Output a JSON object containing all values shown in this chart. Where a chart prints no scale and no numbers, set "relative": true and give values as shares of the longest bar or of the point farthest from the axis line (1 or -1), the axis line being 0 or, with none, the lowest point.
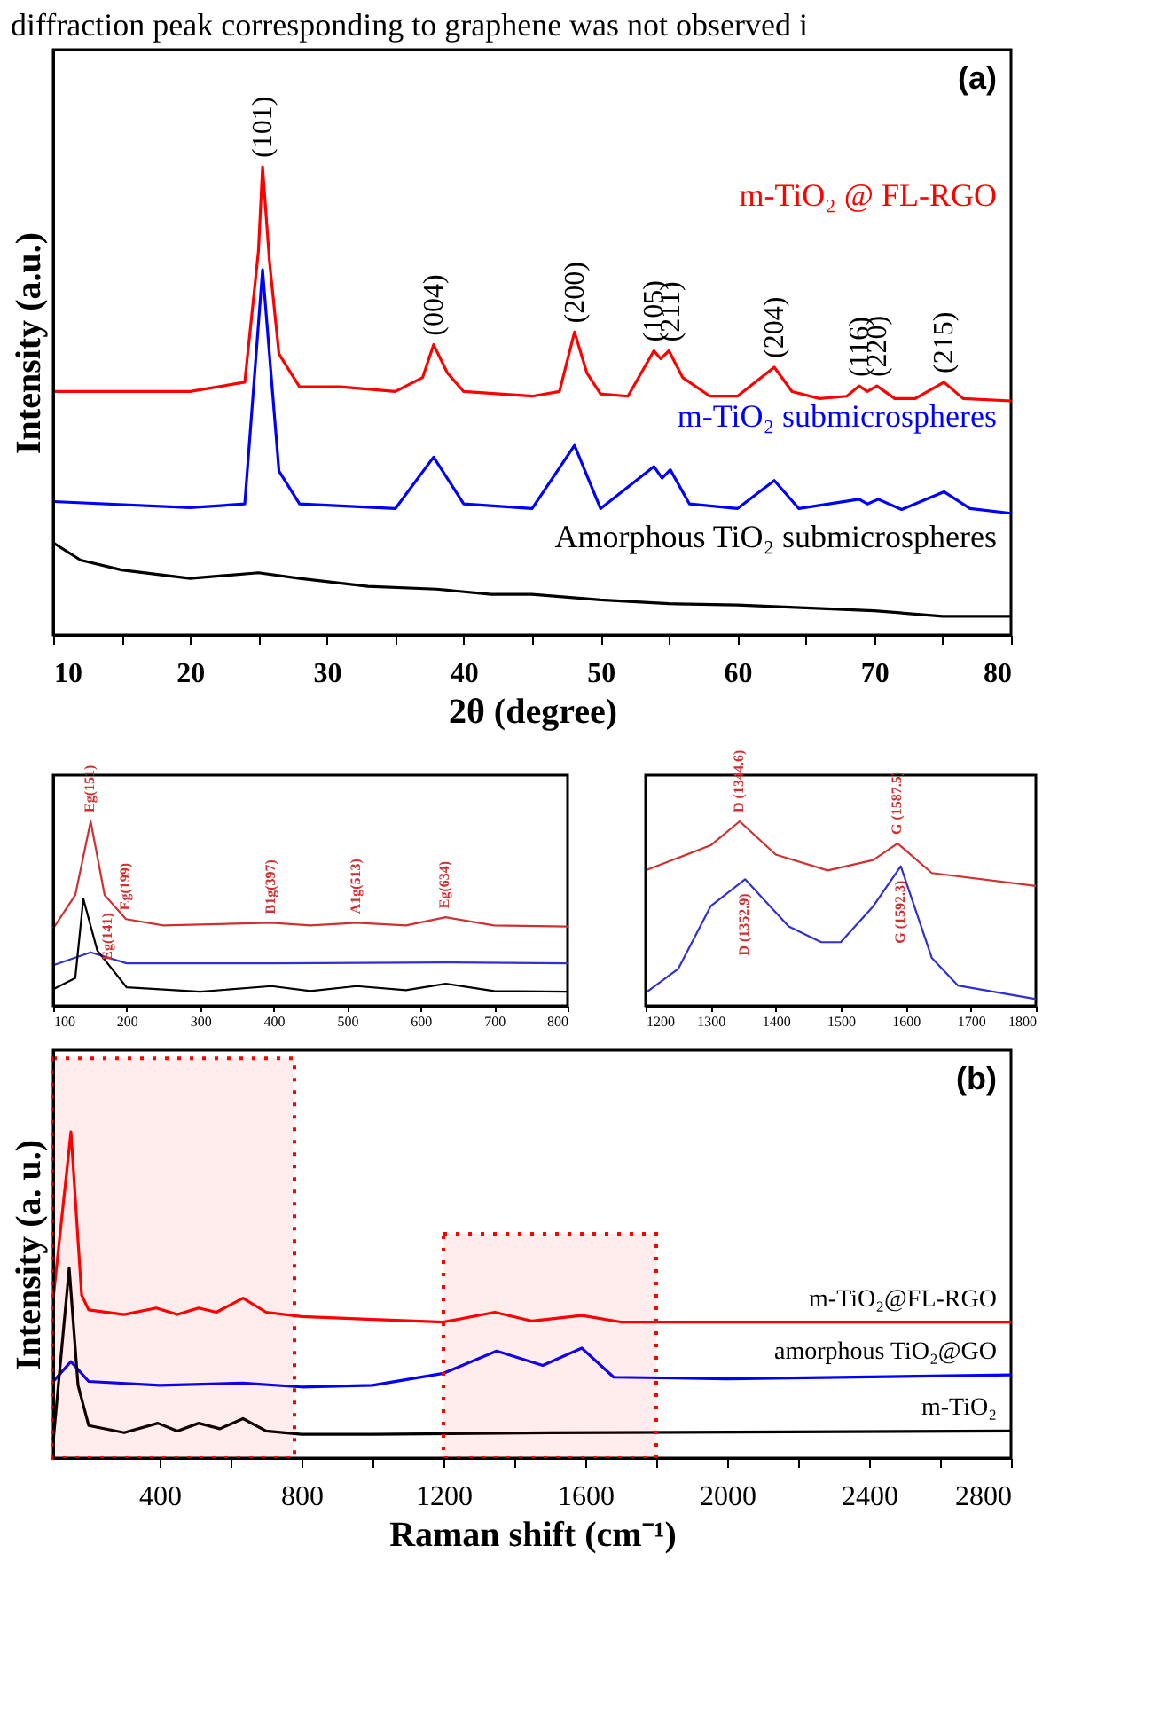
{
  "chart_data": [
    {
      "type": "line",
      "relative": true,
      "title": "diffraction peak corresponding to graphene was not observed i",
      "xlabel": "2θ (degree)",
      "ylabel": "Intensity (a.u.)",
      "xlim": [
        10,
        80
      ],
      "xticks": [
        10,
        {
          "value": 15,
          "label": null
        },
        20,
        {
          "value": 25,
          "label": null
        },
        30,
        {
          "value": 35,
          "label": null
        },
        40,
        {
          "value": 45,
          "label": null
        },
        50,
        {
          "value": 55,
          "label": null
        },
        60,
        {
          "value": 65,
          "label": null
        },
        70,
        {
          "value": 75,
          "label": null
        },
        80
      ],
      "annotations": [
        "(a)",
        {
          "text": "(101)",
          "x": 25.3,
          "y": 1.0
        },
        {
          "text": "(004)",
          "x": 37.8,
          "y": 0.62
        },
        {
          "text": "(200)",
          "x": 48.1,
          "y": 0.647
        },
        {
          "text": "(105)",
          "x": 53.9,
          "y": 0.607
        },
        {
          "text": "(211)",
          "x": 55.1,
          "y": 0.607
        },
        {
          "text": "(204)",
          "x": 62.7,
          "y": 0.572
        },
        {
          "text": "(116)",
          "x": 68.9,
          "y": 0.532
        },
        {
          "text": "(220)",
          "x": 70.2,
          "y": 0.532
        },
        {
          "text": "(215)",
          "x": 75.1,
          "y": 0.54
        }
      ],
      "series": [
        {
          "name": "m-TiO₂ @ FL-RGO",
          "color": "#ff0000",
          "x": [
            10,
            20,
            24,
            25,
            25.3,
            25.8,
            26.5,
            28,
            31,
            35,
            37,
            37.8,
            38.8,
            40,
            45,
            47,
            48.1,
            49,
            50,
            52,
            53.9,
            54.4,
            55,
            56,
            58,
            60,
            62.7,
            64,
            66,
            68,
            68.9,
            69.5,
            70.2,
            71.5,
            73,
            75.1,
            76.5,
            80
          ],
          "values": [
            0.52,
            0.52,
            0.54,
            0.82,
            1.0,
            0.8,
            0.6,
            0.53,
            0.53,
            0.52,
            0.55,
            0.62,
            0.56,
            0.52,
            0.51,
            0.52,
            0.647,
            0.56,
            0.515,
            0.51,
            0.607,
            0.59,
            0.607,
            0.55,
            0.51,
            0.51,
            0.572,
            0.52,
            0.505,
            0.51,
            0.532,
            0.52,
            0.532,
            0.505,
            0.505,
            0.54,
            0.505,
            0.5
          ]
        },
        {
          "name": "m-TiO₂ submicrospheres",
          "color": "#0000ff",
          "x": [
            10,
            20,
            24,
            25.3,
            26.5,
            28,
            35,
            37.8,
            40,
            45,
            48.1,
            50,
            53.9,
            54.5,
            55.1,
            56.5,
            60,
            62.7,
            64.5,
            68.9,
            69.5,
            70.3,
            72,
            75.1,
            77,
            80
          ],
          "values": [
            0.285,
            0.272,
            0.28,
            0.78,
            0.35,
            0.28,
            0.27,
            0.38,
            0.28,
            0.27,
            0.405,
            0.27,
            0.36,
            0.335,
            0.353,
            0.28,
            0.27,
            0.33,
            0.27,
            0.29,
            0.28,
            0.29,
            0.268,
            0.306,
            0.27,
            0.26
          ]
        },
        {
          "name": "Amorphous TiO₂ submicrospheres",
          "color": "#000000",
          "x": [
            10,
            12,
            15,
            20,
            25,
            28,
            33,
            38,
            42,
            45,
            50,
            55,
            60,
            65,
            70,
            75,
            80
          ],
          "values": [
            0.197,
            0.16,
            0.139,
            0.121,
            0.133,
            0.121,
            0.104,
            0.098,
            0.087,
            0.087,
            0.075,
            0.067,
            0.064,
            0.058,
            0.052,
            0.04,
            0.04
          ]
        }
      ]
    },
    {
      "type": "line",
      "relative": true,
      "xlim": [
        100,
        800
      ],
      "xticks": [
        100,
        200,
        300,
        400,
        500,
        600,
        700,
        800
      ],
      "annotations": [
        {
          "text": "Eg(151)",
          "x": 151,
          "y": 1.0
        },
        {
          "text": "Eg(141)",
          "x": 141,
          "y": 0.58
        },
        {
          "text": "Eg(199)",
          "x": 199,
          "y": 0.47
        },
        {
          "text": "B1g(397)",
          "x": 397,
          "y": 0.45
        },
        {
          "text": "A1g(513)",
          "x": 513,
          "y": 0.45
        },
        {
          "text": "Eg(634)",
          "x": 634,
          "y": 0.48
        }
      ],
      "series": [
        {
          "color": "#d03030",
          "x": [
            100,
            130,
            151,
            170,
            199,
            250,
            397,
            450,
            513,
            580,
            634,
            700,
            800
          ],
          "values": [
            0.42,
            0.6,
            1.0,
            0.6,
            0.47,
            0.436,
            0.45,
            0.436,
            0.45,
            0.436,
            0.48,
            0.436,
            0.43
          ]
        },
        {
          "color": "#3030d0",
          "x": [
            100,
            151,
            200,
            400,
            634,
            800
          ],
          "values": [
            0.22,
            0.29,
            0.23,
            0.23,
            0.235,
            0.23
          ]
        },
        {
          "color": "#000000",
          "x": [
            100,
            130,
            141,
            160,
            200,
            300,
            397,
            450,
            513,
            580,
            634,
            700,
            800
          ],
          "values": [
            0.09,
            0.15,
            0.58,
            0.3,
            0.1,
            0.076,
            0.107,
            0.08,
            0.107,
            0.085,
            0.12,
            0.08,
            0.076
          ]
        }
      ]
    },
    {
      "type": "line",
      "relative": true,
      "xlim": [
        1200,
        1800
      ],
      "xticks": [
        1200,
        1300,
        1400,
        1500,
        1600,
        1700,
        1800
      ],
      "annotations": [
        {
          "text": "D (1344.6)",
          "x": 1344.6,
          "y": 1.0
        },
        {
          "text": "G (1587.5)",
          "x": 1587.5,
          "y": 0.88
        },
        {
          "text": "D (1352.9)",
          "x": 1352.9,
          "y": 0.686
        },
        {
          "text": "G (1592.3)",
          "x": 1592.3,
          "y": 0.757
        }
      ],
      "series": [
        {
          "color": "#d03030",
          "x": [
            1200,
            1300,
            1344.6,
            1400,
            1480,
            1550,
            1587.5,
            1640,
            1800
          ],
          "values": [
            0.734,
            0.87,
            1.0,
            0.82,
            0.734,
            0.79,
            0.88,
            0.72,
            0.65
          ]
        },
        {
          "color": "#3030d0",
          "x": [
            1200,
            1250,
            1300,
            1352.9,
            1420,
            1470,
            1500,
            1550,
            1592.3,
            1640,
            1680,
            1800
          ],
          "values": [
            0.07,
            0.2,
            0.54,
            0.686,
            0.43,
            0.345,
            0.345,
            0.54,
            0.757,
            0.26,
            0.11,
            0.037
          ]
        }
      ]
    },
    {
      "type": "line",
      "relative": true,
      "xlabel": "Raman shift (cm⁻¹)",
      "ylabel": "Intensity (a. u.)",
      "xlim": [
        100,
        2800
      ],
      "xticks": [
        400,
        {
          "value": 600,
          "label": null
        },
        800,
        {
          "value": 1000,
          "label": null
        },
        1200,
        {
          "value": 1400,
          "label": null
        },
        1600,
        {
          "value": 1800,
          "label": null
        },
        2000,
        {
          "value": 2200,
          "label": null
        },
        2400,
        {
          "value": 2600,
          "label": null
        },
        2800
      ],
      "annotations": [
        "(b)"
      ],
      "bands": [
        {
          "axis": "x",
          "from": 100,
          "to": 780,
          "color": "#ff0000"
        },
        {
          "axis": "x",
          "from": 1200,
          "to": 1800,
          "color": "#ff0000"
        }
      ],
      "series": [
        {
          "name": "m-TiO₂@FL-RGO",
          "color": "#ff0000",
          "x": [
            100,
            150,
            180,
            200,
            300,
            390,
            450,
            510,
            560,
            635,
            700,
            800,
            1000,
            1200,
            1345,
            1450,
            1590,
            1700,
            2000,
            2400,
            2800
          ],
          "values": [
            0.49,
            1.0,
            0.5,
            0.454,
            0.44,
            0.46,
            0.44,
            0.46,
            0.447,
            0.49,
            0.447,
            0.434,
            0.425,
            0.417,
            0.447,
            0.42,
            0.437,
            0.417,
            0.417,
            0.417,
            0.417
          ]
        },
        {
          "name": "amorphous TiO₂@GO",
          "color": "#0000ff",
          "x": [
            100,
            150,
            200,
            400,
            635,
            800,
            1000,
            1200,
            1350,
            1480,
            1590,
            1680,
            2000,
            2800
          ],
          "values": [
            0.235,
            0.296,
            0.235,
            0.223,
            0.23,
            0.218,
            0.223,
            0.26,
            0.328,
            0.284,
            0.337,
            0.248,
            0.243,
            0.255
          ]
        },
        {
          "name": "m-TiO₂",
          "color": "#000000",
          "x": [
            100,
            145,
            170,
            200,
            300,
            395,
            450,
            510,
            570,
            635,
            700,
            800,
            1000,
            1500,
            2800
          ],
          "values": [
            0.053,
            0.583,
            0.223,
            0.1,
            0.078,
            0.107,
            0.083,
            0.107,
            0.09,
            0.121,
            0.083,
            0.073,
            0.073,
            0.078,
            0.083
          ]
        }
      ]
    }
  ]
}
